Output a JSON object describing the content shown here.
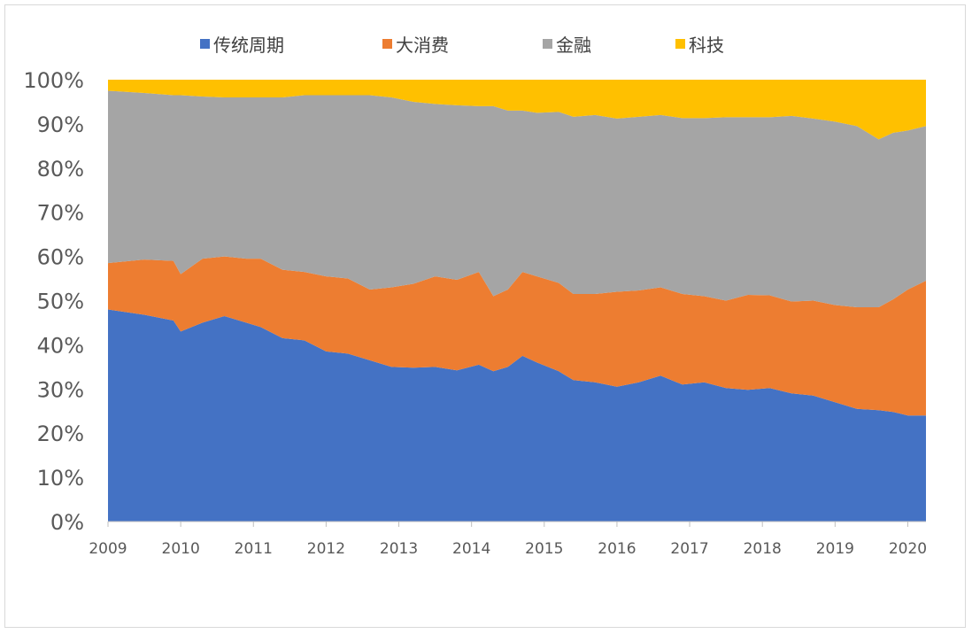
{
  "chart_data": {
    "type": "area",
    "stacked": true,
    "title": "",
    "xlabel": "",
    "ylabel": "",
    "xlim": [
      2009.0,
      2020.25
    ],
    "ylim": [
      0,
      100
    ],
    "legend_position": "top",
    "x_ticks": [
      2009,
      2010,
      2011,
      2012,
      2013,
      2014,
      2015,
      2016,
      2017,
      2018,
      2019,
      2020
    ],
    "y_ticks": [
      "0%",
      "10%",
      "20%",
      "30%",
      "40%",
      "50%",
      "60%",
      "70%",
      "80%",
      "90%",
      "100%"
    ],
    "x": [
      2009.0,
      2009.5,
      2009.9,
      2010.0,
      2010.3,
      2010.6,
      2010.9,
      2011.1,
      2011.4,
      2011.7,
      2012.0,
      2012.3,
      2012.6,
      2012.9,
      2013.2,
      2013.5,
      2013.8,
      2014.1,
      2014.3,
      2014.5,
      2014.7,
      2014.9,
      2015.2,
      2015.4,
      2015.7,
      2016.0,
      2016.3,
      2016.6,
      2016.9,
      2017.2,
      2017.5,
      2017.8,
      2018.1,
      2018.4,
      2018.7,
      2019.0,
      2019.3,
      2019.6,
      2019.8,
      2020.0,
      2020.25
    ],
    "series": [
      {
        "name": "传统周期",
        "color": "#4472C4",
        "values": [
          48,
          46.8,
          45.5,
          43,
          45,
          46.5,
          45,
          44,
          41.5,
          41,
          38.5,
          38,
          36.5,
          35,
          34.8,
          35,
          34.2,
          35.5,
          34,
          35,
          37.5,
          36,
          34,
          32,
          31.5,
          30.5,
          31.5,
          33,
          31,
          31.5,
          30.2,
          29.8,
          30.2,
          29,
          28.5,
          27,
          25.5,
          25.2,
          24.8,
          24,
          24
        ]
      },
      {
        "name": "大消费",
        "color": "#ED7D31",
        "values": [
          10.5,
          12.5,
          13.5,
          13,
          14.5,
          13.5,
          14.5,
          15.5,
          15.5,
          15.5,
          17,
          17,
          16,
          18,
          19,
          20.5,
          20.5,
          21,
          17,
          17.5,
          19,
          19.5,
          20,
          19.5,
          20,
          21.5,
          20.8,
          20,
          20.5,
          19.5,
          19.8,
          21.5,
          21,
          20.8,
          21.5,
          22,
          23,
          23.3,
          25.5,
          28.5,
          30.5
        ]
      },
      {
        "name": "金融",
        "color": "#A5A5A5",
        "values": [
          39,
          37.7,
          37.5,
          40.5,
          36.7,
          36,
          36.5,
          36.5,
          39,
          40,
          41,
          41.5,
          44,
          43,
          41.2,
          39,
          39.5,
          37.5,
          43,
          40.5,
          36.5,
          37,
          38.7,
          40.1,
          40.5,
          39.2,
          39.3,
          39,
          39.8,
          40.3,
          41.5,
          40.2,
          40.3,
          42,
          41.2,
          41.5,
          41,
          38,
          37.7,
          36,
          35
        ]
      },
      {
        "name": "科技",
        "color": "#FFC000",
        "values": [
          2.5,
          3,
          3.5,
          3.5,
          3.8,
          4,
          4,
          4,
          4,
          3.5,
          3.5,
          3.5,
          3.5,
          4,
          5,
          5.5,
          5.8,
          6,
          6,
          7,
          7,
          7.5,
          7.3,
          8.4,
          8,
          8.8,
          8.4,
          8,
          8.7,
          8.7,
          8.5,
          8.5,
          8.5,
          8.2,
          8.8,
          9.5,
          10.5,
          13.5,
          12,
          11.5,
          10.5
        ]
      }
    ]
  }
}
